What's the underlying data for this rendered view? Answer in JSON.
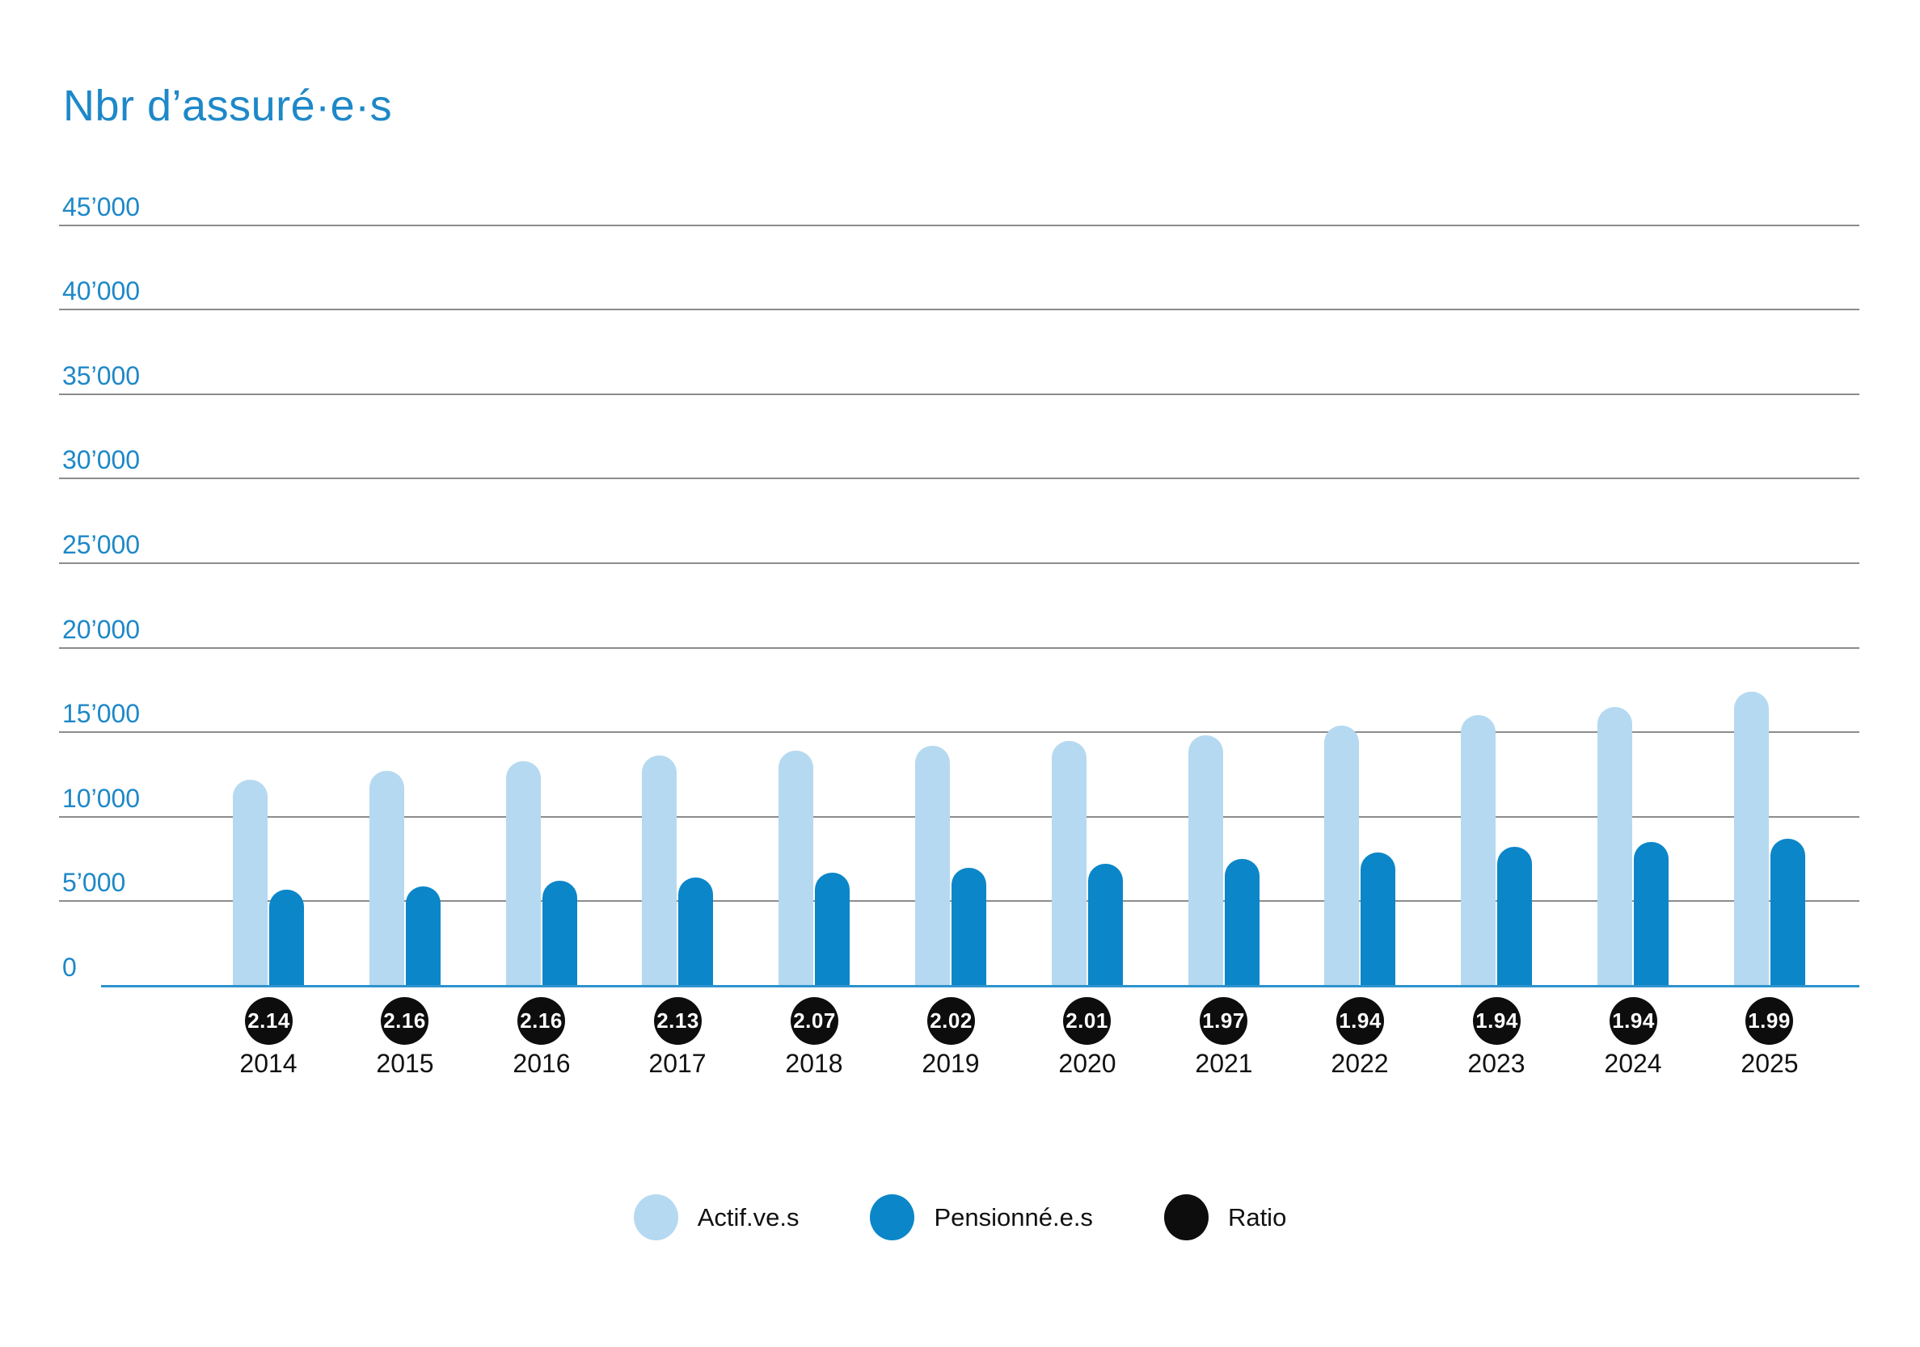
{
  "page": {
    "background": "#ffffff"
  },
  "chart_data": {
    "type": "bar",
    "title": "Nbr d’assuré·e·s",
    "title_color": "#1E88C8",
    "categories": [
      "2014",
      "2015",
      "2016",
      "2017",
      "2018",
      "2019",
      "2020",
      "2021",
      "2022",
      "2023",
      "2024",
      "2025"
    ],
    "series": [
      {
        "name": "Actif.ve.s",
        "color": "#B5D9F0",
        "values": [
          12200,
          12700,
          13300,
          13600,
          13900,
          14200,
          14500,
          14800,
          15400,
          16000,
          16500,
          17400
        ]
      },
      {
        "name": "Pensionné.e.s",
        "color": "#0B86C8",
        "values": [
          5700,
          5900,
          6200,
          6400,
          6700,
          7000,
          7200,
          7500,
          7900,
          8200,
          8500,
          8700
        ]
      },
      {
        "name": "Ratio",
        "color": "#0D0D0D",
        "marker": "badge",
        "values": [
          "2.14",
          "2.16",
          "2.16",
          "2.13",
          "2.07",
          "2.02",
          "2.01",
          "1.97",
          "1.94",
          "1.94",
          "1.94",
          "1.99"
        ]
      }
    ],
    "xlabel": "",
    "ylabel": "",
    "ylim": [
      0,
      45000
    ],
    "grid": true,
    "gridline_color": "#8C8C8C",
    "axis_line_color": "#2E93CE",
    "tick_label_color": "#1E88C8",
    "legend_position": "bottom",
    "yticks": [
      {
        "value": 45000,
        "label": "45’000"
      },
      {
        "value": 40000,
        "label": "40’000"
      },
      {
        "value": 35000,
        "label": "35’000"
      },
      {
        "value": 30000,
        "label": "30’000"
      },
      {
        "value": 25000,
        "label": "25’000"
      },
      {
        "value": 20000,
        "label": "20’000"
      },
      {
        "value": 15000,
        "label": "15’000"
      },
      {
        "value": 10000,
        "label": "10’000"
      },
      {
        "value": 5000,
        "label": "5’000"
      },
      {
        "value": 0,
        "label": "0"
      }
    ]
  }
}
